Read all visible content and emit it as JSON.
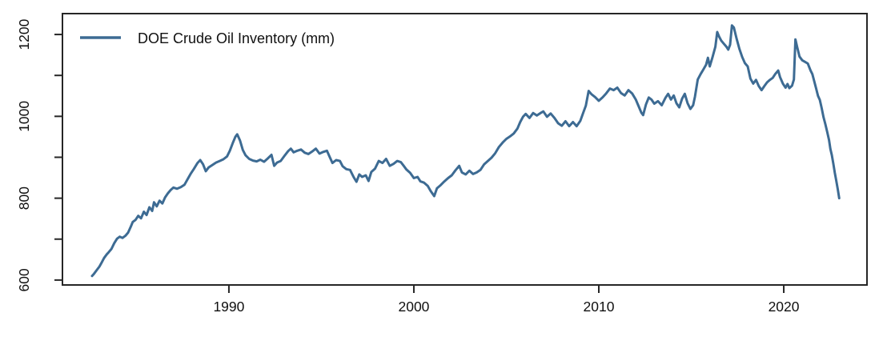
{
  "chart_data": {
    "type": "line",
    "title": "",
    "xlabel": "",
    "ylabel": "",
    "legend": {
      "label": "DOE Crude Oil Inventory (mm)",
      "position": "topleft",
      "box": false
    },
    "grid": false,
    "xlim": [
      1981.0,
      2024.5
    ],
    "ylim": [
      588,
      1251
    ],
    "x_ticks": [
      1990,
      2000,
      2010,
      2020
    ],
    "x_tick_labels": [
      "1990",
      "2000",
      "2010",
      "2020"
    ],
    "y_ticks_minor": [
      600,
      700,
      800,
      900,
      1000,
      1100,
      1200
    ],
    "y_ticks_labeled": [
      600,
      800,
      1000,
      1200
    ],
    "y_tick_labels": [
      "600",
      "800",
      "1000",
      "1200"
    ],
    "colors": {
      "line": "#3d6b93",
      "axis": "#262626",
      "text": "#101010",
      "background": "#ffffff"
    },
    "series": [
      {
        "name": "DOE Crude Oil Inventory (mm)",
        "points": [
          [
            1982.6,
            610
          ],
          [
            1982.7,
            615
          ],
          [
            1982.85,
            624
          ],
          [
            1983.0,
            633
          ],
          [
            1983.1,
            641
          ],
          [
            1983.25,
            654
          ],
          [
            1983.4,
            663
          ],
          [
            1983.5,
            668
          ],
          [
            1983.65,
            676
          ],
          [
            1983.8,
            690
          ],
          [
            1983.95,
            701
          ],
          [
            1984.1,
            706
          ],
          [
            1984.25,
            703
          ],
          [
            1984.4,
            708
          ],
          [
            1984.55,
            716
          ],
          [
            1984.7,
            731
          ],
          [
            1984.8,
            742
          ],
          [
            1984.95,
            747
          ],
          [
            1985.1,
            757
          ],
          [
            1985.25,
            751
          ],
          [
            1985.4,
            767
          ],
          [
            1985.55,
            759
          ],
          [
            1985.7,
            778
          ],
          [
            1985.85,
            769
          ],
          [
            1985.95,
            790
          ],
          [
            1986.1,
            780
          ],
          [
            1986.25,
            794
          ],
          [
            1986.4,
            787
          ],
          [
            1986.55,
            802
          ],
          [
            1986.7,
            812
          ],
          [
            1986.85,
            820
          ],
          [
            1987.0,
            826
          ],
          [
            1987.2,
            823
          ],
          [
            1987.4,
            827
          ],
          [
            1987.6,
            833
          ],
          [
            1987.8,
            849
          ],
          [
            1987.95,
            861
          ],
          [
            1988.1,
            871
          ],
          [
            1988.3,
            886
          ],
          [
            1988.45,
            893
          ],
          [
            1988.6,
            883
          ],
          [
            1988.75,
            866
          ],
          [
            1988.9,
            875
          ],
          [
            1989.1,
            881
          ],
          [
            1989.3,
            887
          ],
          [
            1989.5,
            891
          ],
          [
            1989.7,
            895
          ],
          [
            1989.9,
            902
          ],
          [
            1990.05,
            916
          ],
          [
            1990.2,
            934
          ],
          [
            1990.35,
            950
          ],
          [
            1990.45,
            956
          ],
          [
            1990.6,
            941
          ],
          [
            1990.75,
            918
          ],
          [
            1990.9,
            905
          ],
          [
            1991.1,
            896
          ],
          [
            1991.3,
            892
          ],
          [
            1991.5,
            890
          ],
          [
            1991.7,
            894
          ],
          [
            1991.9,
            889
          ],
          [
            1992.1,
            897
          ],
          [
            1992.3,
            906
          ],
          [
            1992.45,
            879
          ],
          [
            1992.6,
            887
          ],
          [
            1992.8,
            891
          ],
          [
            1993.0,
            903
          ],
          [
            1993.2,
            915
          ],
          [
            1993.35,
            921
          ],
          [
            1993.5,
            912
          ],
          [
            1993.7,
            916
          ],
          [
            1993.9,
            919
          ],
          [
            1994.1,
            911
          ],
          [
            1994.3,
            908
          ],
          [
            1994.5,
            914
          ],
          [
            1994.7,
            921
          ],
          [
            1994.9,
            909
          ],
          [
            1995.1,
            913
          ],
          [
            1995.3,
            916
          ],
          [
            1995.45,
            901
          ],
          [
            1995.6,
            886
          ],
          [
            1995.8,
            893
          ],
          [
            1996.0,
            891
          ],
          [
            1996.15,
            878
          ],
          [
            1996.35,
            871
          ],
          [
            1996.55,
            869
          ],
          [
            1996.75,
            851
          ],
          [
            1996.9,
            840
          ],
          [
            1997.05,
            858
          ],
          [
            1997.2,
            852
          ],
          [
            1997.4,
            856
          ],
          [
            1997.55,
            842
          ],
          [
            1997.7,
            864
          ],
          [
            1997.9,
            872
          ],
          [
            1998.1,
            891
          ],
          [
            1998.3,
            886
          ],
          [
            1998.5,
            896
          ],
          [
            1998.7,
            879
          ],
          [
            1998.9,
            884
          ],
          [
            1999.1,
            891
          ],
          [
            1999.3,
            888
          ],
          [
            1999.45,
            879
          ],
          [
            1999.6,
            870
          ],
          [
            1999.8,
            862
          ],
          [
            2000.0,
            849
          ],
          [
            2000.2,
            852
          ],
          [
            2000.35,
            841
          ],
          [
            2000.55,
            838
          ],
          [
            2000.75,
            830
          ],
          [
            2000.9,
            818
          ],
          [
            2001.1,
            805
          ],
          [
            2001.25,
            824
          ],
          [
            2001.45,
            832
          ],
          [
            2001.65,
            841
          ],
          [
            2001.85,
            849
          ],
          [
            2002.05,
            856
          ],
          [
            2002.25,
            868
          ],
          [
            2002.45,
            879
          ],
          [
            2002.6,
            863
          ],
          [
            2002.8,
            858
          ],
          [
            2003.0,
            867
          ],
          [
            2003.2,
            859
          ],
          [
            2003.4,
            863
          ],
          [
            2003.6,
            869
          ],
          [
            2003.8,
            883
          ],
          [
            2004.0,
            891
          ],
          [
            2004.2,
            899
          ],
          [
            2004.4,
            910
          ],
          [
            2004.6,
            925
          ],
          [
            2004.8,
            936
          ],
          [
            2005.0,
            945
          ],
          [
            2005.2,
            951
          ],
          [
            2005.4,
            958
          ],
          [
            2005.6,
            970
          ],
          [
            2005.75,
            986
          ],
          [
            2005.9,
            999
          ],
          [
            2006.05,
            1006
          ],
          [
            2006.25,
            996
          ],
          [
            2006.45,
            1008
          ],
          [
            2006.65,
            1002
          ],
          [
            2006.85,
            1008
          ],
          [
            2007.0,
            1012
          ],
          [
            2007.2,
            999
          ],
          [
            2007.4,
            1007
          ],
          [
            2007.6,
            996
          ],
          [
            2007.8,
            983
          ],
          [
            2008.0,
            977
          ],
          [
            2008.2,
            988
          ],
          [
            2008.4,
            976
          ],
          [
            2008.6,
            986
          ],
          [
            2008.8,
            976
          ],
          [
            2009.0,
            989
          ],
          [
            2009.15,
            1008
          ],
          [
            2009.3,
            1026
          ],
          [
            2009.45,
            1062
          ],
          [
            2009.6,
            1054
          ],
          [
            2009.8,
            1047
          ],
          [
            2010.0,
            1038
          ],
          [
            2010.2,
            1046
          ],
          [
            2010.4,
            1056
          ],
          [
            2010.6,
            1068
          ],
          [
            2010.8,
            1064
          ],
          [
            2011.0,
            1070
          ],
          [
            2011.2,
            1057
          ],
          [
            2011.4,
            1051
          ],
          [
            2011.6,
            1064
          ],
          [
            2011.8,
            1056
          ],
          [
            2012.0,
            1041
          ],
          [
            2012.15,
            1025
          ],
          [
            2012.3,
            1009
          ],
          [
            2012.4,
            1003
          ],
          [
            2012.55,
            1029
          ],
          [
            2012.7,
            1046
          ],
          [
            2012.85,
            1041
          ],
          [
            2013.0,
            1031
          ],
          [
            2013.2,
            1037
          ],
          [
            2013.4,
            1027
          ],
          [
            2013.6,
            1045
          ],
          [
            2013.75,
            1055
          ],
          [
            2013.9,
            1041
          ],
          [
            2014.05,
            1051
          ],
          [
            2014.2,
            1032
          ],
          [
            2014.35,
            1022
          ],
          [
            2014.5,
            1043
          ],
          [
            2014.65,
            1055
          ],
          [
            2014.8,
            1032
          ],
          [
            2014.95,
            1018
          ],
          [
            2015.1,
            1027
          ],
          [
            2015.2,
            1048
          ],
          [
            2015.35,
            1090
          ],
          [
            2015.5,
            1103
          ],
          [
            2015.65,
            1114
          ],
          [
            2015.8,
            1126
          ],
          [
            2015.9,
            1143
          ],
          [
            2016.0,
            1122
          ],
          [
            2016.15,
            1145
          ],
          [
            2016.3,
            1170
          ],
          [
            2016.4,
            1206
          ],
          [
            2016.5,
            1195
          ],
          [
            2016.62,
            1185
          ],
          [
            2016.75,
            1178
          ],
          [
            2016.9,
            1170
          ],
          [
            2017.0,
            1163
          ],
          [
            2017.1,
            1175
          ],
          [
            2017.2,
            1222
          ],
          [
            2017.3,
            1217
          ],
          [
            2017.45,
            1190
          ],
          [
            2017.6,
            1165
          ],
          [
            2017.75,
            1145
          ],
          [
            2017.9,
            1130
          ],
          [
            2018.05,
            1122
          ],
          [
            2018.2,
            1092
          ],
          [
            2018.35,
            1080
          ],
          [
            2018.5,
            1089
          ],
          [
            2018.65,
            1074
          ],
          [
            2018.8,
            1064
          ],
          [
            2018.95,
            1074
          ],
          [
            2019.1,
            1083
          ],
          [
            2019.25,
            1089
          ],
          [
            2019.4,
            1094
          ],
          [
            2019.55,
            1104
          ],
          [
            2019.7,
            1112
          ],
          [
            2019.8,
            1096
          ],
          [
            2019.95,
            1080
          ],
          [
            2020.1,
            1070
          ],
          [
            2020.2,
            1079
          ],
          [
            2020.3,
            1069
          ],
          [
            2020.45,
            1075
          ],
          [
            2020.55,
            1090
          ],
          [
            2020.63,
            1188
          ],
          [
            2020.72,
            1170
          ],
          [
            2020.85,
            1146
          ],
          [
            2021.0,
            1137
          ],
          [
            2021.15,
            1133
          ],
          [
            2021.3,
            1129
          ],
          [
            2021.45,
            1112
          ],
          [
            2021.55,
            1103
          ],
          [
            2021.65,
            1085
          ],
          [
            2021.75,
            1068
          ],
          [
            2021.85,
            1050
          ],
          [
            2021.95,
            1040
          ],
          [
            2022.05,
            1020
          ],
          [
            2022.15,
            998
          ],
          [
            2022.25,
            981
          ],
          [
            2022.35,
            962
          ],
          [
            2022.45,
            942
          ],
          [
            2022.52,
            920
          ],
          [
            2022.6,
            905
          ],
          [
            2022.68,
            884
          ],
          [
            2022.76,
            862
          ],
          [
            2022.84,
            843
          ],
          [
            2022.92,
            822
          ],
          [
            2023.0,
            800
          ]
        ]
      }
    ]
  }
}
